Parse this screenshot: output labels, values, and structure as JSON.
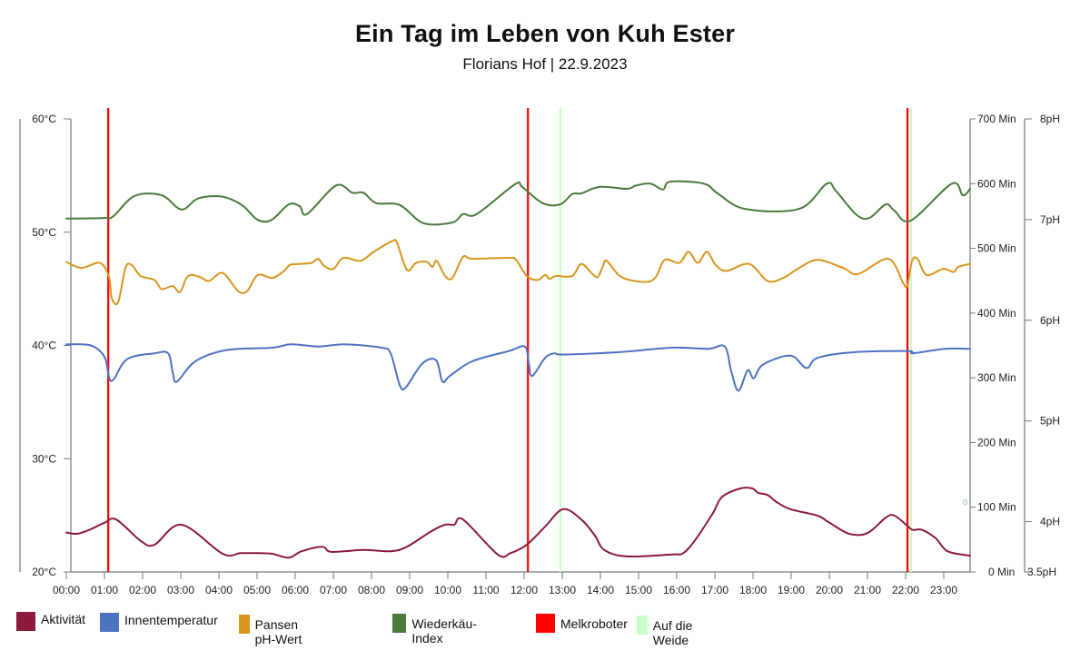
{
  "header": {
    "title": "Ein Tag im Leben von Kuh Ester",
    "subtitle": "Florians Hof | 22.9.2023"
  },
  "chart_data": {
    "type": "line",
    "title": "Ein Tag im Leben von Kuh Ester",
    "subtitle": "Florians Hof | 22.9.2023",
    "x_unit": "hours",
    "x_range": [
      0,
      23.7
    ],
    "x_ticks": [
      "00:00",
      "01:00",
      "02:00",
      "03:00",
      "04:00",
      "05:00",
      "06:00",
      "07:00",
      "08:00",
      "09:00",
      "10:00",
      "11:00",
      "12:00",
      "13:00",
      "14:00",
      "15:00",
      "16:00",
      "17:00",
      "18:00",
      "19:00",
      "20:00",
      "21:00",
      "22:00",
      "23:00"
    ],
    "axes": {
      "temperature": {
        "label_suffix": "°C",
        "range": [
          20,
          60
        ],
        "ticks": [
          "20°C",
          "30°C",
          "40°C",
          "50°C",
          "60°C"
        ],
        "tick_values": [
          20,
          30,
          40,
          50,
          60
        ],
        "side": "left"
      },
      "minutes": {
        "label_suffix": " Min",
        "range": [
          0,
          700
        ],
        "ticks": [
          "0 Min",
          "100 Min",
          "200 Min",
          "300 Min",
          "400 Min",
          "500 Min",
          "600 Min",
          "700 Min"
        ],
        "tick_values": [
          0,
          100,
          200,
          300,
          400,
          500,
          600,
          700
        ],
        "side": "right"
      },
      "ph": {
        "label_suffix": "pH",
        "range": [
          3.5,
          8
        ],
        "ticks": [
          "3.5pH",
          "4pH",
          "5pH",
          "6pH",
          "7pH",
          "8pH"
        ],
        "tick_values": [
          3.5,
          4,
          5,
          6,
          7,
          8
        ],
        "side": "right-outer"
      }
    },
    "series": [
      {
        "name": "Aktivität",
        "color": "#8b1a3c",
        "axis": "minutes",
        "points": [
          [
            0,
            61
          ],
          [
            0.29,
            59
          ],
          [
            0.64,
            66
          ],
          [
            1.0,
            76
          ],
          [
            1.31,
            81
          ],
          [
            1.95,
            48
          ],
          [
            2.31,
            42
          ],
          [
            3.02,
            73
          ],
          [
            4.1,
            28
          ],
          [
            4.57,
            29
          ],
          [
            5.05,
            29
          ],
          [
            5.4,
            28
          ],
          [
            5.83,
            22
          ],
          [
            6.17,
            32
          ],
          [
            6.71,
            39
          ],
          [
            6.95,
            31
          ],
          [
            7.79,
            34
          ],
          [
            8.5,
            32
          ],
          [
            8.93,
            39
          ],
          [
            9.57,
            63
          ],
          [
            9.93,
            73
          ],
          [
            10.17,
            73
          ],
          [
            10.4,
            81
          ],
          [
            11.31,
            27
          ],
          [
            11.64,
            29
          ],
          [
            12.07,
            42
          ],
          [
            12.55,
            70
          ],
          [
            13.02,
            97
          ],
          [
            13.5,
            81
          ],
          [
            13.86,
            56
          ],
          [
            14.1,
            34
          ],
          [
            14.69,
            24
          ],
          [
            15.88,
            27
          ],
          [
            16.17,
            29
          ],
          [
            16.48,
            49
          ],
          [
            16.95,
            91
          ],
          [
            17.19,
            116
          ],
          [
            17.67,
            129
          ],
          [
            17.98,
            129
          ],
          [
            18.14,
            122
          ],
          [
            18.38,
            119
          ],
          [
            18.62,
            108
          ],
          [
            18.98,
            97
          ],
          [
            19.69,
            87
          ],
          [
            19.98,
            77
          ],
          [
            20.52,
            59
          ],
          [
            21.0,
            60
          ],
          [
            21.48,
            84
          ],
          [
            21.71,
            87
          ],
          [
            22.07,
            70
          ],
          [
            22.19,
            65
          ],
          [
            22.43,
            65
          ],
          [
            22.79,
            52
          ],
          [
            23.1,
            32
          ],
          [
            23.69,
            25
          ]
        ]
      },
      {
        "name": "Innentemperatur",
        "color": "#4e72c2",
        "axis": "temperature",
        "points": [
          [
            0,
            40.1
          ],
          [
            0.64,
            40.0
          ],
          [
            1.0,
            39.0
          ],
          [
            1.12,
            37.2
          ],
          [
            1.24,
            37.0
          ],
          [
            1.6,
            38.8
          ],
          [
            2.31,
            39.3
          ],
          [
            2.67,
            39.3
          ],
          [
            2.79,
            37.6
          ],
          [
            2.9,
            36.8
          ],
          [
            3.38,
            38.6
          ],
          [
            4.21,
            39.6
          ],
          [
            5.4,
            39.8
          ],
          [
            5.88,
            40.1
          ],
          [
            6.6,
            39.9
          ],
          [
            7.31,
            40.1
          ],
          [
            8.26,
            39.8
          ],
          [
            8.5,
            39.3
          ],
          [
            8.74,
            36.5
          ],
          [
            8.9,
            36.3
          ],
          [
            9.33,
            38.4
          ],
          [
            9.69,
            38.7
          ],
          [
            9.86,
            36.8
          ],
          [
            10.05,
            37.3
          ],
          [
            10.64,
            38.6
          ],
          [
            11.6,
            39.5
          ],
          [
            12.02,
            39.9
          ],
          [
            12.12,
            38.5
          ],
          [
            12.21,
            37.3
          ],
          [
            12.55,
            38.9
          ],
          [
            12.79,
            39.3
          ],
          [
            13.02,
            39.2
          ],
          [
            14.45,
            39.4
          ],
          [
            15.88,
            39.8
          ],
          [
            16.83,
            39.7
          ],
          [
            17.26,
            39.9
          ],
          [
            17.43,
            37.7
          ],
          [
            17.62,
            36.0
          ],
          [
            17.86,
            37.8
          ],
          [
            18.02,
            37.1
          ],
          [
            18.26,
            38.3
          ],
          [
            18.98,
            39.1
          ],
          [
            19.4,
            38.0
          ],
          [
            19.69,
            38.9
          ],
          [
            20.64,
            39.4
          ],
          [
            22.07,
            39.5
          ],
          [
            22.19,
            39.3
          ],
          [
            23.02,
            39.7
          ],
          [
            23.69,
            39.7
          ]
        ]
      },
      {
        "name": "Pansen pH-Wert",
        "color": "#d9951e",
        "axis": "ph",
        "points": [
          [
            0,
            6.58
          ],
          [
            0.4,
            6.52
          ],
          [
            0.88,
            6.57
          ],
          [
            1.12,
            6.43
          ],
          [
            1.19,
            6.22
          ],
          [
            1.36,
            6.18
          ],
          [
            1.55,
            6.52
          ],
          [
            1.71,
            6.55
          ],
          [
            1.95,
            6.44
          ],
          [
            2.31,
            6.4
          ],
          [
            2.5,
            6.31
          ],
          [
            2.79,
            6.34
          ],
          [
            2.98,
            6.28
          ],
          [
            3.19,
            6.44
          ],
          [
            3.5,
            6.43
          ],
          [
            3.74,
            6.39
          ],
          [
            4.1,
            6.47
          ],
          [
            4.5,
            6.29
          ],
          [
            4.74,
            6.29
          ],
          [
            5.02,
            6.45
          ],
          [
            5.4,
            6.42
          ],
          [
            5.71,
            6.49
          ],
          [
            5.86,
            6.55
          ],
          [
            6.12,
            6.56
          ],
          [
            6.43,
            6.57
          ],
          [
            6.6,
            6.61
          ],
          [
            6.76,
            6.54
          ],
          [
            7.0,
            6.51
          ],
          [
            7.26,
            6.62
          ],
          [
            7.71,
            6.59
          ],
          [
            8.02,
            6.67
          ],
          [
            8.36,
            6.75
          ],
          [
            8.57,
            6.79
          ],
          [
            8.67,
            6.77
          ],
          [
            8.93,
            6.5
          ],
          [
            9.17,
            6.57
          ],
          [
            9.45,
            6.58
          ],
          [
            9.6,
            6.53
          ],
          [
            9.71,
            6.59
          ],
          [
            9.93,
            6.44
          ],
          [
            10.12,
            6.42
          ],
          [
            10.4,
            6.63
          ],
          [
            10.64,
            6.61
          ],
          [
            11.6,
            6.62
          ],
          [
            11.79,
            6.6
          ],
          [
            12.07,
            6.44
          ],
          [
            12.36,
            6.4
          ],
          [
            12.55,
            6.45
          ],
          [
            12.67,
            6.41
          ],
          [
            12.83,
            6.44
          ],
          [
            13.26,
            6.44
          ],
          [
            13.5,
            6.56
          ],
          [
            13.79,
            6.46
          ],
          [
            13.93,
            6.43
          ],
          [
            14.07,
            6.54
          ],
          [
            14.17,
            6.59
          ],
          [
            14.55,
            6.43
          ],
          [
            15.17,
            6.38
          ],
          [
            15.45,
            6.43
          ],
          [
            15.69,
            6.6
          ],
          [
            16.07,
            6.57
          ],
          [
            16.31,
            6.68
          ],
          [
            16.55,
            6.57
          ],
          [
            16.79,
            6.68
          ],
          [
            17.02,
            6.55
          ],
          [
            17.31,
            6.49
          ],
          [
            17.9,
            6.56
          ],
          [
            18.38,
            6.39
          ],
          [
            18.79,
            6.42
          ],
          [
            19.17,
            6.51
          ],
          [
            19.69,
            6.6
          ],
          [
            20.36,
            6.52
          ],
          [
            20.76,
            6.46
          ],
          [
            21.55,
            6.61
          ],
          [
            21.95,
            6.36
          ],
          [
            22.05,
            6.35
          ],
          [
            22.17,
            6.59
          ],
          [
            22.31,
            6.61
          ],
          [
            22.55,
            6.45
          ],
          [
            22.98,
            6.51
          ],
          [
            23.26,
            6.48
          ],
          [
            23.38,
            6.53
          ],
          [
            23.69,
            6.56
          ]
        ]
      },
      {
        "name": "Wiederkäu-Index",
        "color": "#4a7a3a",
        "axis": "minutes",
        "points": [
          [
            0,
            546
          ],
          [
            1.0,
            547
          ],
          [
            1.24,
            550
          ],
          [
            1.79,
            581
          ],
          [
            2.5,
            582
          ],
          [
            3.02,
            560
          ],
          [
            3.45,
            577
          ],
          [
            4.07,
            580
          ],
          [
            4.6,
            567
          ],
          [
            5.02,
            544
          ],
          [
            5.38,
            544
          ],
          [
            5.83,
            568
          ],
          [
            6.12,
            565
          ],
          [
            6.31,
            553
          ],
          [
            7.07,
            597
          ],
          [
            7.5,
            586
          ],
          [
            7.79,
            586
          ],
          [
            8.12,
            570
          ],
          [
            8.74,
            567
          ],
          [
            9.36,
            539
          ],
          [
            10.12,
            540
          ],
          [
            10.4,
            553
          ],
          [
            10.76,
            553
          ],
          [
            11.76,
            599
          ],
          [
            11.95,
            595
          ],
          [
            12.48,
            570
          ],
          [
            12.95,
            568
          ],
          [
            13.26,
            584
          ],
          [
            13.5,
            585
          ],
          [
            13.98,
            595
          ],
          [
            14.69,
            592
          ],
          [
            14.93,
            597
          ],
          [
            15.31,
            600
          ],
          [
            15.64,
            591
          ],
          [
            15.83,
            603
          ],
          [
            16.71,
            600
          ],
          [
            17.07,
            585
          ],
          [
            17.79,
            561
          ],
          [
            19.21,
            561
          ],
          [
            19.93,
            600
          ],
          [
            20.17,
            589
          ],
          [
            20.71,
            552
          ],
          [
            21.05,
            547
          ],
          [
            21.48,
            568
          ],
          [
            21.71,
            558
          ],
          [
            22.14,
            543
          ],
          [
            23.21,
            600
          ],
          [
            23.5,
            582
          ],
          [
            23.69,
            592
          ]
        ]
      }
    ],
    "events": [
      {
        "name": "Melkroboter",
        "color": "#ff0000",
        "times": [
          1.1,
          12.1,
          22.05
        ]
      },
      {
        "name": "Auf die Weide",
        "color": "#c8ffc8",
        "times": [
          12.95,
          22.14
        ]
      }
    ],
    "annotations": [
      {
        "text": "0",
        "color": "#7fb0d0",
        "near_axis": "minutes",
        "value": 100
      }
    ],
    "legend": {
      "position": "bottom-left",
      "entries": [
        {
          "label": "Aktivität",
          "color": "#8b1a3c"
        },
        {
          "label": "Innentemperatur",
          "color": "#4e72c2"
        },
        {
          "label": "Pansen pH-Wert",
          "color": "#d9951e"
        },
        {
          "label": "Wiederkäu-Index",
          "color": "#4a7a3a"
        },
        {
          "label": "Melkroboter",
          "color": "#ff0000"
        },
        {
          "label": "Auf die Weide",
          "color": "#c8ffc8"
        }
      ]
    },
    "grid": false
  }
}
